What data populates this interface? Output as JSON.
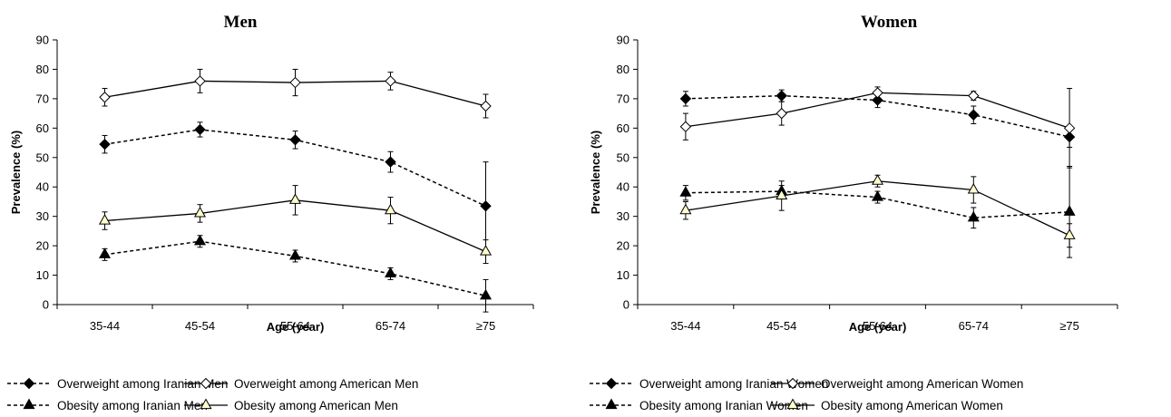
{
  "chart_data": [
    {
      "type": "line",
      "title": "Men",
      "xlabel": "Age (year)",
      "ylabel": "Prevalence (%)",
      "ylim": [
        0,
        90
      ],
      "yticks": [
        "0",
        "10",
        "20",
        "30",
        "40",
        "50",
        "60",
        "70",
        "80",
        "90"
      ],
      "categories": [
        "35-44",
        "45-54",
        "55-64",
        "65-74",
        "≥75"
      ],
      "grid": false,
      "legend_position": "bottom",
      "series": [
        {
          "name": "Overweight among Iranian Men",
          "style": "dashed",
          "marker": "diamond-filled",
          "values": [
            54.5,
            59.5,
            56,
            48.5,
            33.5
          ],
          "error": [
            3,
            2.5,
            3,
            3.5,
            15
          ]
        },
        {
          "name": "Overweight among American Men",
          "style": "solid",
          "marker": "diamond-open",
          "values": [
            70.5,
            76,
            75.5,
            76,
            67.5
          ],
          "error": [
            3,
            4,
            4.5,
            3,
            4
          ]
        },
        {
          "name": "Obesity among Iranian Men",
          "style": "dashed",
          "marker": "triangle-filled",
          "values": [
            17,
            21.5,
            16.5,
            10.5,
            3
          ],
          "error": [
            2,
            2,
            2,
            2,
            5.5
          ]
        },
        {
          "name": "Obesity among American Men",
          "style": "solid",
          "marker": "triangle-open",
          "values": [
            28.5,
            31,
            35.5,
            32,
            18
          ],
          "error": [
            3,
            3,
            5,
            4.5,
            4
          ]
        }
      ]
    },
    {
      "type": "line",
      "title": "Women",
      "xlabel": "Age (year)",
      "ylabel": "Prevalence (%)",
      "ylim": [
        0,
        90
      ],
      "yticks": [
        "0",
        "10",
        "20",
        "30",
        "40",
        "50",
        "60",
        "70",
        "80",
        "90"
      ],
      "categories": [
        "35-44",
        "45-54",
        "55-64",
        "65-74",
        "≥75"
      ],
      "grid": false,
      "legend_position": "bottom",
      "series": [
        {
          "name": "Overweight among Iranian Women",
          "style": "dashed",
          "marker": "diamond-filled",
          "values": [
            70,
            71,
            69.5,
            64.5,
            57
          ],
          "error": [
            2.5,
            2,
            2.5,
            3,
            3.5
          ]
        },
        {
          "name": "Overweight among American Women",
          "style": "solid",
          "marker": "diamond-open",
          "values": [
            60.5,
            65,
            72,
            71,
            60
          ],
          "error": [
            4.5,
            4,
            2,
            1.5,
            13.5
          ]
        },
        {
          "name": "Obesity among Iranian Women",
          "style": "dashed",
          "marker": "triangle-filled",
          "values": [
            38,
            38.5,
            36.5,
            29.5,
            31.5
          ],
          "error": [
            2.5,
            2,
            2,
            3.5,
            15.5
          ]
        },
        {
          "name": "Obesity among American Women",
          "style": "solid",
          "marker": "triangle-open",
          "values": [
            32,
            37,
            42,
            39,
            23.5
          ],
          "error": [
            3,
            5,
            2,
            4.5,
            4
          ]
        }
      ]
    }
  ]
}
